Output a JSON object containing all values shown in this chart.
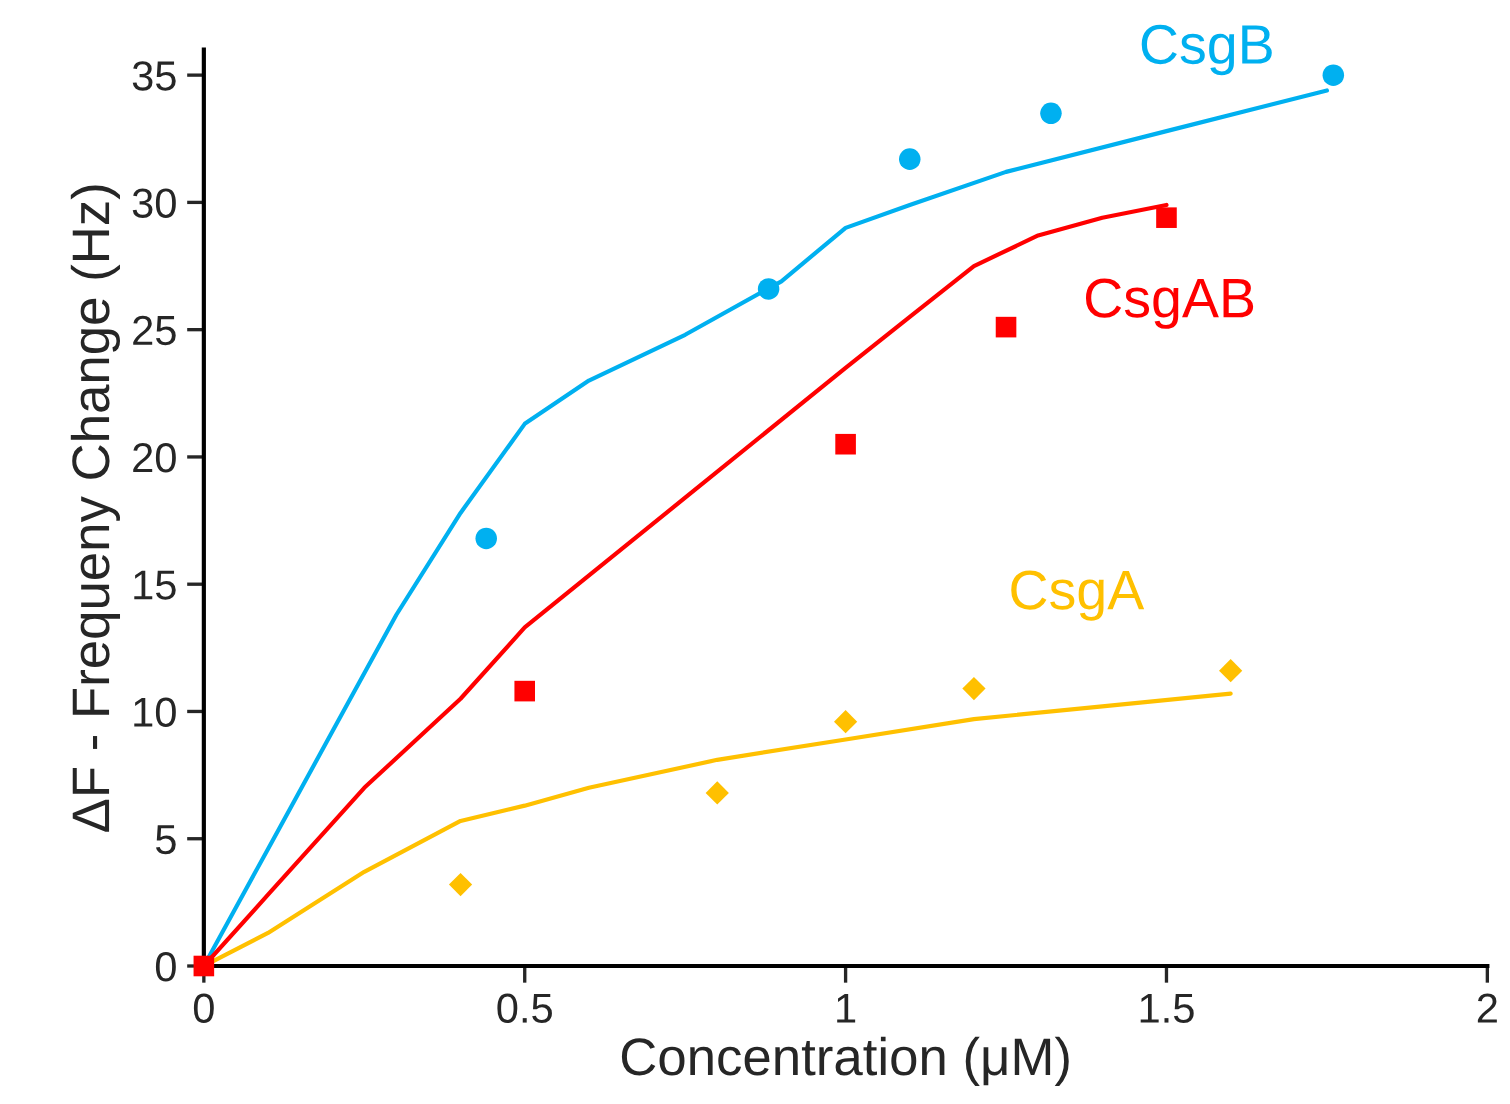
{
  "chart_data": {
    "type": "scatter",
    "xlabel": "Concentration (μM)",
    "ylabel": "ΔF - Frequeny Change (Hz)",
    "xlim": [
      0,
      2
    ],
    "ylim": [
      0,
      36
    ],
    "xticks": [
      0,
      0.5,
      1,
      1.5,
      2
    ],
    "yticks": [
      0,
      5,
      10,
      15,
      20,
      25,
      30,
      35
    ],
    "grid": false,
    "legend": false,
    "series": [
      {
        "name": "CsgB",
        "marker": "circle",
        "color": "#00b0f0",
        "x": [
          0.44,
          0.88,
          1.1,
          1.32,
          1.76
        ],
        "values": [
          16.8,
          26.6,
          31.7,
          33.5,
          35.0
        ]
      },
      {
        "name": "CsgAB",
        "marker": "square",
        "color": "#ff0000",
        "x": [
          0,
          0.5,
          1.0,
          1.25,
          1.5
        ],
        "values": [
          0,
          10.8,
          20.5,
          25.1,
          29.4
        ]
      },
      {
        "name": "CsgA",
        "marker": "diamond",
        "color": "#ffc000",
        "x": [
          0.4,
          0.8,
          1.0,
          1.2,
          1.6
        ],
        "values": [
          3.2,
          6.8,
          9.6,
          10.9,
          11.6
        ]
      },
      {
        "type": "line",
        "color": "#00b0f0",
        "x": [
          0,
          0.1,
          0.2,
          0.3,
          0.4,
          0.5,
          0.6,
          0.75,
          0.9,
          1.0,
          1.1,
          1.25,
          1.5,
          1.75
        ],
        "values": [
          0,
          4.6,
          9.2,
          13.8,
          17.8,
          21.3,
          23.0,
          24.8,
          26.9,
          29.0,
          29.9,
          31.2,
          32.8,
          34.4
        ]
      },
      {
        "type": "line",
        "color": "#ff0000",
        "x": [
          0,
          0.1,
          0.25,
          0.4,
          0.5,
          0.75,
          1.0,
          1.1,
          1.2,
          1.3,
          1.4,
          1.5
        ],
        "values": [
          0,
          2.8,
          7.0,
          10.5,
          13.3,
          18.4,
          23.5,
          25.5,
          27.5,
          28.7,
          29.4,
          29.9
        ]
      },
      {
        "type": "line",
        "color": "#ffc000",
        "x": [
          0,
          0.1,
          0.25,
          0.4,
          0.5,
          0.6,
          0.8,
          1.0,
          1.2,
          1.4,
          1.6
        ],
        "values": [
          0,
          1.3,
          3.7,
          5.7,
          6.3,
          7.0,
          8.1,
          8.9,
          9.7,
          10.2,
          10.7
        ]
      }
    ]
  }
}
